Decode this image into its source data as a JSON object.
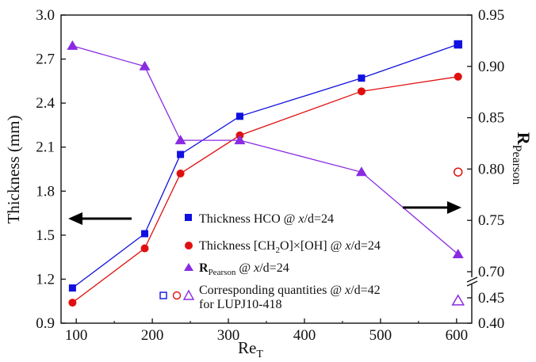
{
  "chart_data": {
    "type": "line",
    "xlabel": "Re",
    "xlabel_sub": "T",
    "ylabel": "Thickness (mm)",
    "y2label": "R",
    "y2label_sub": "Pearson",
    "xlim": [
      80,
      620
    ],
    "ylim": [
      0.9,
      3.0
    ],
    "x_ticks": [
      100,
      200,
      300,
      400,
      500,
      600
    ],
    "y_ticks": [
      "0.9",
      "1.2",
      "1.5",
      "1.8",
      "2.1",
      "2.4",
      "2.7",
      "3.0"
    ],
    "y2_ticks_upper": [
      "0.70",
      "0.75",
      "0.80",
      "0.85",
      "0.90",
      "0.95"
    ],
    "y2_ticks_lower": [
      "0.40",
      "0.45"
    ],
    "y2_upper_range": [
      0.7,
      0.95
    ],
    "y2_lower_range": [
      0.4,
      0.45
    ],
    "y2_axis_broken": true,
    "grid": false,
    "series": [
      {
        "key": "hco",
        "color": "#1010e0",
        "marker": "square",
        "axis": "left",
        "x": [
          95,
          190,
          237,
          315,
          475,
          602
        ],
        "y": [
          1.14,
          1.51,
          2.05,
          2.31,
          2.57,
          2.8
        ]
      },
      {
        "key": "ch2o_oh",
        "color": "#e01010",
        "marker": "circle",
        "axis": "left",
        "x": [
          95,
          190,
          237,
          315,
          475,
          602
        ],
        "y": [
          1.04,
          1.41,
          1.92,
          2.18,
          2.48,
          2.58
        ]
      },
      {
        "key": "rpearson",
        "color": "#8a2be2",
        "marker": "triangle",
        "axis": "right",
        "x": [
          95,
          190,
          237,
          315,
          475,
          602
        ],
        "y": [
          0.92,
          0.9,
          0.828,
          0.828,
          0.797,
          0.717
        ]
      }
    ],
    "open_points": [
      {
        "key": "hco",
        "marker": "square",
        "color": "#1010e0",
        "axis": "left",
        "x": 602,
        "y": 2.8
      },
      {
        "key": "ch2o_oh",
        "marker": "circle",
        "color": "#e01010",
        "axis": "left",
        "x": 602,
        "y": 1.93
      },
      {
        "key": "rpearson",
        "marker": "triangle",
        "color": "#8a2be2",
        "axis": "right-lower",
        "x": 602,
        "y": 0.444
      }
    ],
    "legend": {
      "placement": "bottom-center",
      "entries": [
        {
          "marker": "square",
          "color": "#1010e0",
          "text": "Thickness  HCO @ x/d=24"
        },
        {
          "marker": "circle",
          "color": "#e01010",
          "text": "Thickness [CH2O]×[OH] @ x/d=24"
        },
        {
          "marker": "triangle",
          "color": "#8a2be2",
          "text": "RPearson @ x/d=24"
        },
        {
          "marker": "open-set",
          "text": "Corresponding quantities @ x/d=42",
          "text2": "for LUPJ10-418"
        }
      ]
    },
    "annotations": [
      {
        "type": "arrow",
        "direction": "left",
        "meaning": "left axis"
      },
      {
        "type": "arrow",
        "direction": "right",
        "meaning": "right axis"
      }
    ]
  },
  "legend_text": {
    "l1_a": "Thickness  HCO @ ",
    "l1_x": "x",
    "l1_b": "/d=24",
    "l2_a": "Thickness [CH",
    "l2_sub": "2",
    "l2_b": "O]×[OH] @ ",
    "l2_x": "x",
    "l2_c": "/d=24",
    "l3_R": "R",
    "l3_sub": "Pearson",
    "l3_b": " @ ",
    "l3_x": "x",
    "l3_c": "/d=24",
    "l4_a": "Corresponding quantities @ ",
    "l4_x": "x",
    "l4_b": "/d=42",
    "l5": "for LUPJ10-418"
  }
}
